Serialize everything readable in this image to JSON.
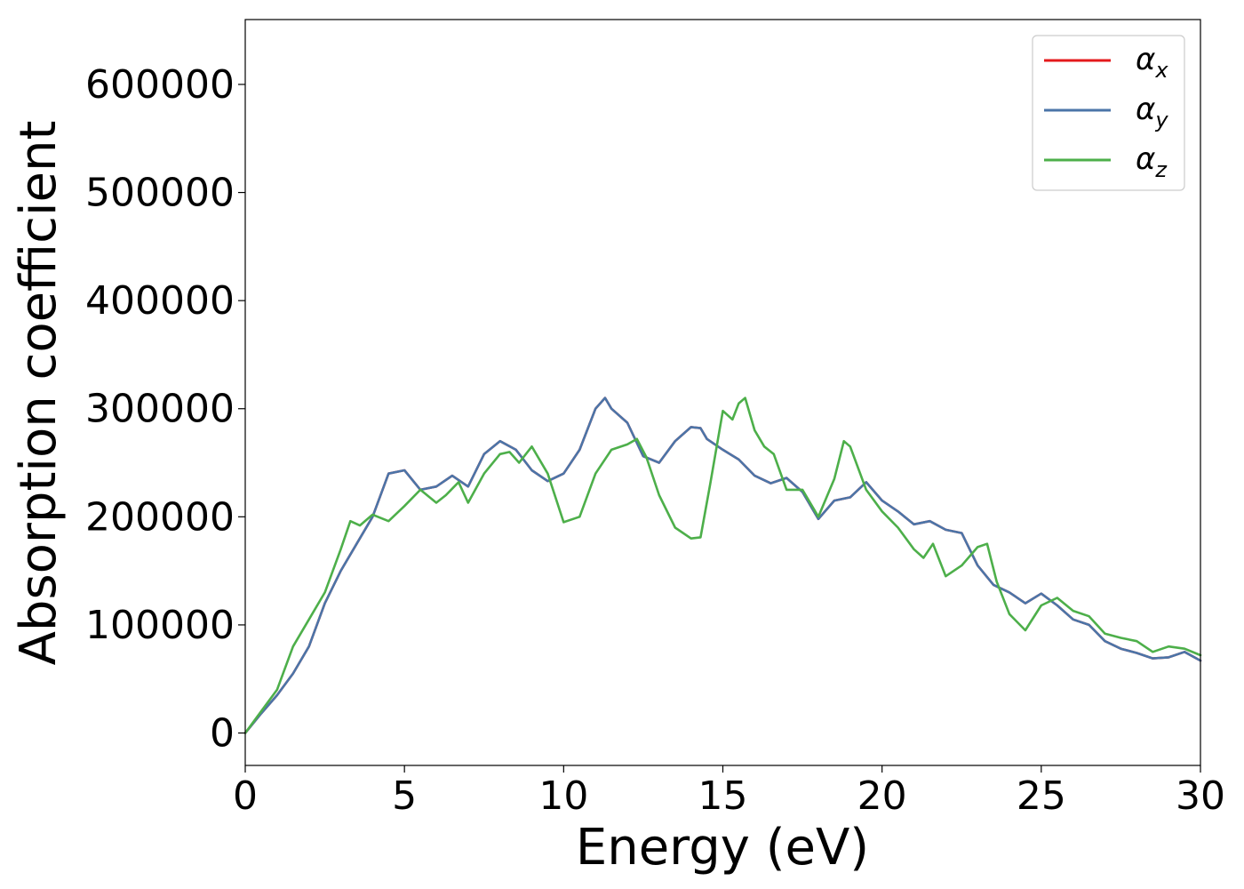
{
  "chart_data": {
    "type": "line",
    "xlabel": "Energy (eV)",
    "ylabel": "Absorption coefficient",
    "xlim": [
      0,
      30
    ],
    "ylim": [
      -30000,
      660000
    ],
    "x_ticks": [
      0,
      5,
      10,
      15,
      20,
      25,
      30
    ],
    "y_ticks": [
      0,
      100000,
      200000,
      300000,
      400000,
      500000,
      600000
    ],
    "grid": false,
    "legend_position": "top-right",
    "series": [
      {
        "name": "α_x",
        "label_symbol": "α",
        "label_sub": "x",
        "color": "#e41a1c",
        "x": [
          0,
          0.5,
          1,
          1.5,
          2,
          2.5,
          3,
          3.5,
          4,
          4.5,
          5,
          5.5,
          6,
          6.5,
          7,
          7.5,
          8,
          8.5,
          9,
          9.5,
          10,
          10.5,
          11,
          11.3,
          11.5,
          12,
          12.5,
          13,
          13.5,
          14,
          14.3,
          14.5,
          15,
          15.5,
          16,
          16.5,
          17,
          17.5,
          18,
          18.5,
          19,
          19.5,
          20,
          20.5,
          21,
          21.5,
          22,
          22.5,
          23,
          23.5,
          24,
          24.5,
          25,
          25.5,
          26,
          26.5,
          27,
          27.5,
          28,
          28.5,
          29,
          29.5,
          30
        ],
        "values": [
          0,
          18000,
          35000,
          55000,
          80000,
          120000,
          150000,
          175000,
          200000,
          240000,
          243000,
          225000,
          228000,
          238000,
          228000,
          258000,
          270000,
          262000,
          243000,
          233000,
          240000,
          262000,
          300000,
          310000,
          300000,
          287000,
          256000,
          250000,
          270000,
          283000,
          282000,
          272000,
          262000,
          253000,
          238000,
          231000,
          236000,
          223000,
          198000,
          215000,
          218000,
          232000,
          215000,
          205000,
          193000,
          196000,
          188000,
          185000,
          155000,
          137000,
          130000,
          120000,
          129000,
          118000,
          105000,
          100000,
          85000,
          78000,
          74000,
          69000,
          70000,
          75000,
          67000
        ]
      },
      {
        "name": "α_y",
        "label_symbol": "α",
        "label_sub": "y",
        "color": "#4b75a8",
        "x": [
          0,
          0.5,
          1,
          1.5,
          2,
          2.5,
          3,
          3.5,
          4,
          4.5,
          5,
          5.5,
          6,
          6.5,
          7,
          7.5,
          8,
          8.5,
          9,
          9.5,
          10,
          10.5,
          11,
          11.3,
          11.5,
          12,
          12.5,
          13,
          13.5,
          14,
          14.3,
          14.5,
          15,
          15.5,
          16,
          16.5,
          17,
          17.5,
          18,
          18.5,
          19,
          19.5,
          20,
          20.5,
          21,
          21.5,
          22,
          22.5,
          23,
          23.5,
          24,
          24.5,
          25,
          25.5,
          26,
          26.5,
          27,
          27.5,
          28,
          28.5,
          29,
          29.5,
          30
        ],
        "values": [
          0,
          18000,
          35000,
          55000,
          80000,
          120000,
          150000,
          175000,
          200000,
          240000,
          243000,
          225000,
          228000,
          238000,
          228000,
          258000,
          270000,
          262000,
          243000,
          233000,
          240000,
          262000,
          300000,
          310000,
          300000,
          287000,
          256000,
          250000,
          270000,
          283000,
          282000,
          272000,
          262000,
          253000,
          238000,
          231000,
          236000,
          223000,
          198000,
          215000,
          218000,
          232000,
          215000,
          205000,
          193000,
          196000,
          188000,
          185000,
          155000,
          137000,
          130000,
          120000,
          129000,
          118000,
          105000,
          100000,
          85000,
          78000,
          74000,
          69000,
          70000,
          75000,
          67000
        ]
      },
      {
        "name": "α_z",
        "label_symbol": "α",
        "label_sub": "z",
        "color": "#4daf4a",
        "x": [
          0,
          0.5,
          1,
          1.5,
          2,
          2.5,
          3,
          3.3,
          3.6,
          4,
          4.5,
          5,
          5.5,
          6,
          6.3,
          6.7,
          7,
          7.5,
          8,
          8.3,
          8.6,
          9,
          9.5,
          10,
          10.5,
          11,
          11.5,
          12,
          12.3,
          12.6,
          13,
          13.5,
          14,
          14.3,
          14.6,
          15,
          15.3,
          15.5,
          15.7,
          16,
          16.3,
          16.6,
          17,
          17.5,
          18,
          18.5,
          18.8,
          19,
          19.5,
          20,
          20.5,
          21,
          21.3,
          21.6,
          22,
          22.5,
          23,
          23.3,
          23.6,
          24,
          24.5,
          25,
          25.5,
          26,
          26.5,
          27,
          27.5,
          28,
          28.5,
          29,
          29.5,
          30
        ],
        "values": [
          0,
          20000,
          40000,
          80000,
          105000,
          130000,
          170000,
          196000,
          192000,
          202000,
          196000,
          210000,
          225000,
          213000,
          220000,
          232000,
          213000,
          240000,
          258000,
          260000,
          250000,
          265000,
          240000,
          195000,
          200000,
          240000,
          262000,
          267000,
          272000,
          255000,
          220000,
          190000,
          180000,
          181000,
          230000,
          298000,
          290000,
          305000,
          310000,
          280000,
          265000,
          258000,
          225000,
          225000,
          200000,
          235000,
          270000,
          265000,
          225000,
          205000,
          190000,
          170000,
          162000,
          175000,
          145000,
          155000,
          172000,
          175000,
          140000,
          110000,
          95000,
          118000,
          125000,
          113000,
          108000,
          92000,
          88000,
          85000,
          75000,
          80000,
          78000,
          72000
        ]
      }
    ]
  }
}
